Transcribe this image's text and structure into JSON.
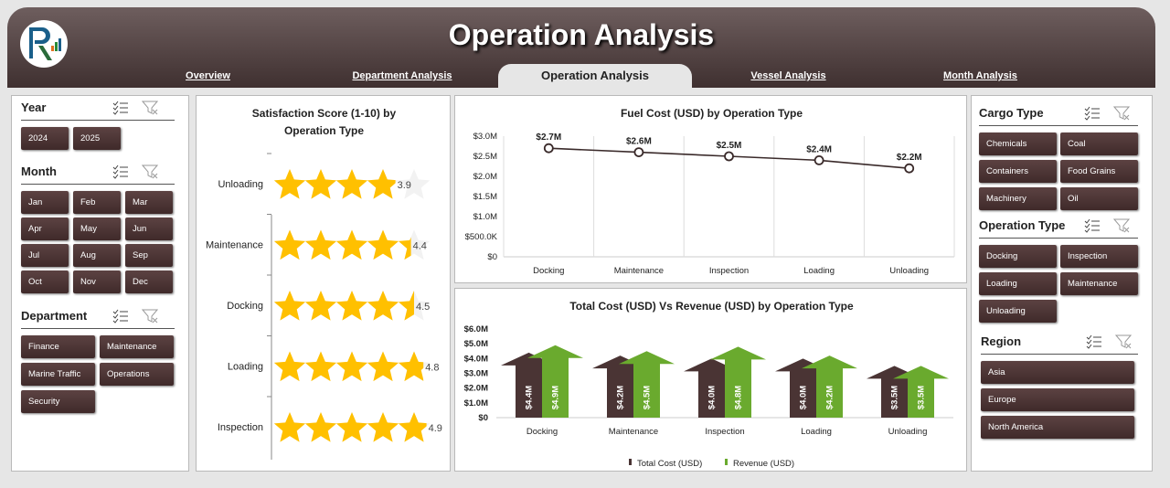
{
  "header": {
    "title": "Operation Analysis",
    "tabs": [
      {
        "label": "Overview"
      },
      {
        "label": "Department Analysis"
      },
      {
        "label": "Operation Analysis",
        "active": true
      },
      {
        "label": "Vessel Analysis"
      },
      {
        "label": "Month Analysis"
      }
    ]
  },
  "colors": {
    "brand": "#4a3434",
    "accent_green": "#6aaa2e",
    "star": "#ffc000"
  },
  "left": {
    "year": {
      "title": "Year",
      "items": [
        "2024",
        "2025"
      ]
    },
    "month": {
      "title": "Month",
      "items": [
        "Jan",
        "Feb",
        "Mar",
        "Apr",
        "May",
        "Jun",
        "Jul",
        "Aug",
        "Sep",
        "Oct",
        "Nov",
        "Dec"
      ]
    },
    "department": {
      "title": "Department",
      "items": [
        "Finance",
        "Maintenance",
        "Marine Traffic",
        "Operations",
        "Security"
      ]
    }
  },
  "right": {
    "cargo": {
      "title": "Cargo Type",
      "items": [
        "Chemicals",
        "Coal",
        "Containers",
        "Food Grains",
        "Machinery",
        "Oil"
      ]
    },
    "operation": {
      "title": "Operation Type",
      "items": [
        "Docking",
        "Inspection",
        "Loading",
        "Maintenance",
        "Unloading"
      ]
    },
    "region": {
      "title": "Region",
      "items": [
        "Asia",
        "Europe",
        "North America"
      ]
    }
  },
  "chart_data": [
    {
      "type": "bar",
      "subtype": "star-rating",
      "title": "Satisfaction Score (1-10) by Operation Type",
      "title_lines": [
        "Satisfaction Score (1-10) by",
        "Operation Type"
      ],
      "categories": [
        "Unloading",
        "Maintenance",
        "Docking",
        "Loading",
        "Inspection"
      ],
      "values": [
        3.9,
        4.4,
        4.5,
        4.8,
        4.9
      ],
      "max_stars": 5
    },
    {
      "type": "line",
      "title": "Fuel Cost (USD) by Operation Type",
      "categories": [
        "Docking",
        "Maintenance",
        "Inspection",
        "Loading",
        "Unloading"
      ],
      "values": [
        2.7,
        2.6,
        2.5,
        2.4,
        2.2
      ],
      "data_labels": [
        "$2.7M",
        "$2.6M",
        "$2.5M",
        "$2.4M",
        "$2.2M"
      ],
      "unit": "USD millions",
      "ylim": [
        0,
        3.0
      ],
      "yticks": [
        "$0",
        "$500.0K",
        "$1.0M",
        "$1.5M",
        "$2.0M",
        "$2.5M",
        "$3.0M"
      ],
      "grid": "vertical"
    },
    {
      "type": "bar",
      "title": "Total Cost (USD) Vs Revenue (USD) by Operation Type",
      "categories": [
        "Docking",
        "Maintenance",
        "Inspection",
        "Loading",
        "Unloading"
      ],
      "series": [
        {
          "name": "Total Cost (USD)",
          "values": [
            4.4,
            4.2,
            4.0,
            4.0,
            3.5
          ],
          "labels": [
            "$4.4M",
            "$4.2M",
            "$4.0M",
            "$4.0M",
            "$3.5M"
          ],
          "color": "#4a3434"
        },
        {
          "name": "Revenue (USD)",
          "values": [
            4.9,
            4.5,
            4.8,
            4.2,
            3.5
          ],
          "labels": [
            "$4.9M",
            "$4.5M",
            "$4.8M",
            "$4.2M",
            "$3.5M"
          ],
          "color": "#6aaa2e"
        }
      ],
      "unit": "USD millions",
      "ylim": [
        0,
        6
      ],
      "yticks": [
        "$0",
        "$1.0M",
        "$2.0M",
        "$3.0M",
        "$4.0M",
        "$5.0M",
        "$6.0M"
      ],
      "legend": "bottom"
    }
  ]
}
